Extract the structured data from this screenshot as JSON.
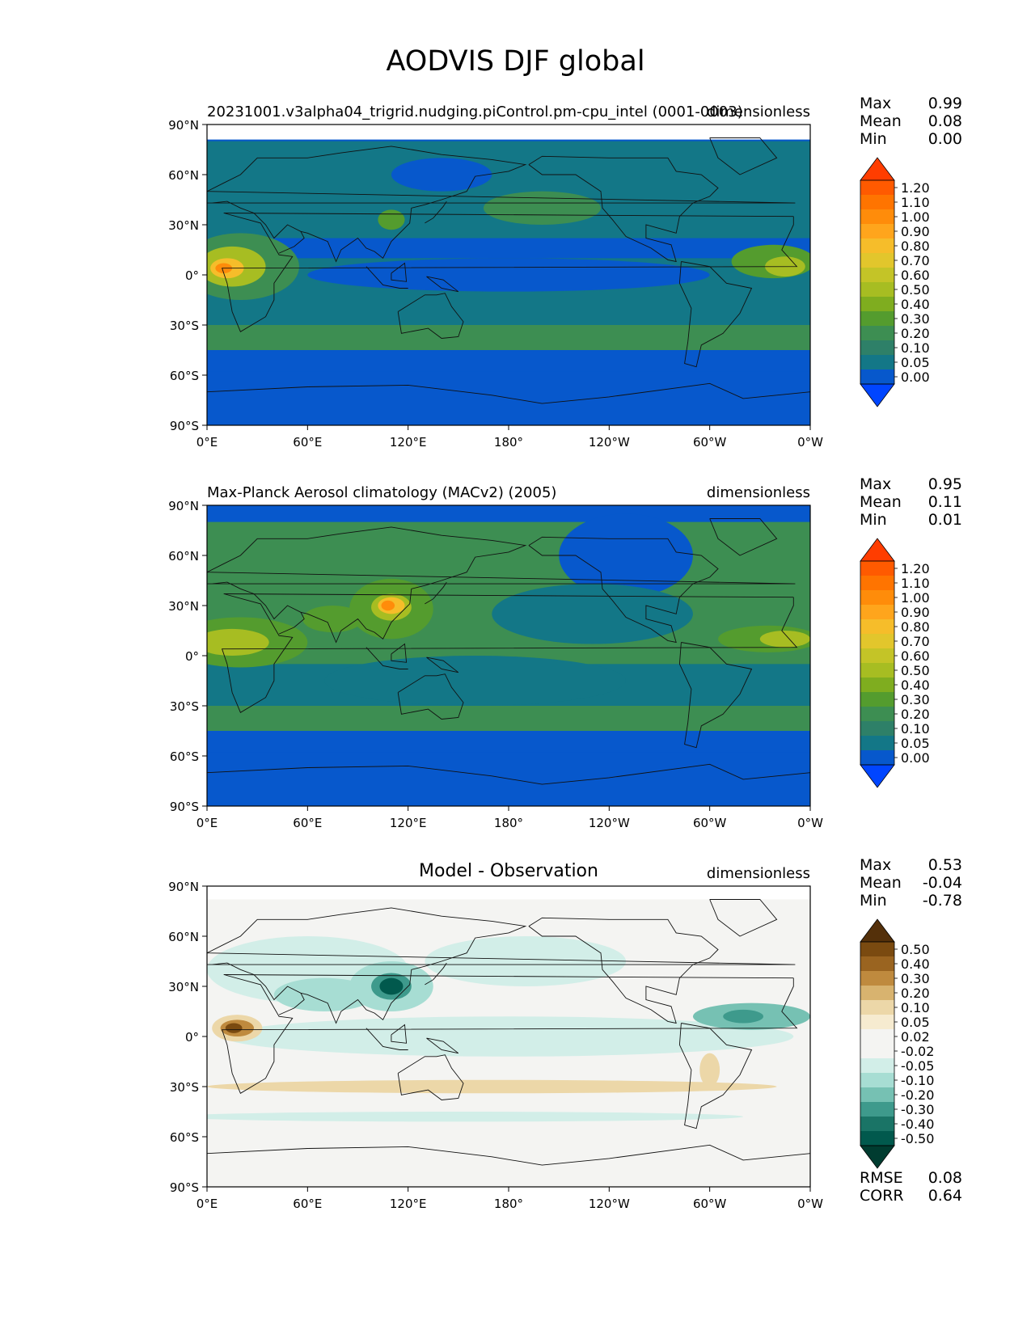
{
  "suptitle": "AODVIS DJF global",
  "panels": [
    {
      "left_title": "20231001.v3alpha04_trigrid.nudging.piControl.pm-cpu_intel (0001-0003)",
      "right_title": "dimensionless",
      "center_title": "",
      "stats": [
        {
          "label": "Max",
          "value": "0.99"
        },
        {
          "label": "Mean",
          "value": "0.08"
        },
        {
          "label": "Min",
          "value": "0.00"
        }
      ],
      "colorbar": {
        "labels": [
          "1.20",
          "1.10",
          "1.00",
          "0.90",
          "0.80",
          "0.70",
          "0.60",
          "0.50",
          "0.40",
          "0.30",
          "0.20",
          "0.10",
          "0.05",
          "0.00"
        ],
        "colors": [
          "#ff3d00",
          "#ff5a00",
          "#ff7400",
          "#ff8c0a",
          "#ffa51c",
          "#f6bd2a",
          "#e2c62c",
          "#c4c427",
          "#a7bd22",
          "#7fad1f",
          "#549c2e",
          "#3d8e52",
          "#2e8068",
          "#137787",
          "#0758cc",
          "#0045ff"
        ]
      },
      "map_colors": {
        "base": "#0758cc",
        "level1": "#137787",
        "level2": "#3d8e52",
        "level3": "#549c2e",
        "level4": "#a7bd22",
        "level5": "#f6bd2a",
        "level6": "#ff8c0a"
      }
    },
    {
      "left_title": "Max-Planck Aerosol climatology (MACv2) (2005)",
      "right_title": "dimensionless",
      "center_title": "",
      "stats": [
        {
          "label": "Max",
          "value": "0.95"
        },
        {
          "label": "Mean",
          "value": "0.11"
        },
        {
          "label": "Min",
          "value": "0.01"
        }
      ],
      "colorbar": {
        "labels": [
          "1.20",
          "1.10",
          "1.00",
          "0.90",
          "0.80",
          "0.70",
          "0.60",
          "0.50",
          "0.40",
          "0.30",
          "0.20",
          "0.10",
          "0.05",
          "0.00"
        ],
        "colors": [
          "#ff3d00",
          "#ff5a00",
          "#ff7400",
          "#ff8c0a",
          "#ffa51c",
          "#f6bd2a",
          "#e2c62c",
          "#c4c427",
          "#a7bd22",
          "#7fad1f",
          "#549c2e",
          "#3d8e52",
          "#2e8068",
          "#137787",
          "#0758cc",
          "#0045ff"
        ]
      },
      "map_colors": {
        "base": "#0758cc",
        "level1": "#137787",
        "level2": "#3d8e52",
        "level3": "#549c2e",
        "level4": "#a7bd22",
        "level5": "#f6bd2a",
        "level6": "#ff8c0a"
      }
    },
    {
      "left_title": "",
      "right_title": "dimensionless",
      "center_title": "Model - Observation",
      "stats": [
        {
          "label": "Max",
          "value": "0.53"
        },
        {
          "label": "Mean",
          "value": "-0.04"
        },
        {
          "label": "Min",
          "value": "-0.78"
        }
      ],
      "colorbar": {
        "labels": [
          "0.50",
          "0.40",
          "0.30",
          "0.20",
          "0.10",
          "0.05",
          "0.02",
          "-0.02",
          "-0.05",
          "-0.10",
          "-0.20",
          "-0.30",
          "-0.40",
          "-0.50"
        ],
        "colors": [
          "#54300a",
          "#7a4a10",
          "#9a6420",
          "#bf8a3e",
          "#d8b36f",
          "#ecd7a8",
          "#f6ebd0",
          "#f4f4f2",
          "#f4f4f2",
          "#d2eee8",
          "#a7ddd3",
          "#76c1b3",
          "#3e9a8c",
          "#1a7466",
          "#01594d",
          "#003c30"
        ]
      },
      "map_colors": {
        "base": "#f4f4f2",
        "level1": "#d2eee8",
        "level2": "#a7ddd3",
        "level3": "#76c1b3",
        "level4": "#3e9a8c",
        "level5": "#01594d",
        "brown1": "#ecd7a8",
        "brown2": "#bf8a3e",
        "brown3": "#7a4a10"
      }
    }
  ],
  "rmse": {
    "label": "RMSE",
    "value": "0.08"
  },
  "corr": {
    "label": "CORR",
    "value": "0.64"
  },
  "axes": {
    "xticks": [
      "0°E",
      "60°E",
      "120°E",
      "180°",
      "120°W",
      "60°W",
      "0°W"
    ],
    "yticks": [
      "90°N",
      "60°N",
      "30°N",
      "0°",
      "30°S",
      "60°S",
      "90°S"
    ]
  },
  "chart_data": [
    {
      "type": "heatmap",
      "title": "20231001.v3alpha04_trigrid.nudging.piControl.pm-cpu_intel (0001-0003)",
      "units": "dimensionless",
      "max": 0.99,
      "mean": 0.08,
      "min": 0.0,
      "xlim": [
        0,
        360
      ],
      "ylim": [
        -90,
        90
      ],
      "levels": [
        0.0,
        0.05,
        0.1,
        0.2,
        0.3,
        0.4,
        0.5,
        0.6,
        0.7,
        0.8,
        0.9,
        1.0,
        1.1,
        1.2
      ]
    },
    {
      "type": "heatmap",
      "title": "Max-Planck Aerosol climatology (MACv2) (2005)",
      "units": "dimensionless",
      "max": 0.95,
      "mean": 0.11,
      "min": 0.01,
      "xlim": [
        0,
        360
      ],
      "ylim": [
        -90,
        90
      ],
      "levels": [
        0.0,
        0.05,
        0.1,
        0.2,
        0.3,
        0.4,
        0.5,
        0.6,
        0.7,
        0.8,
        0.9,
        1.0,
        1.1,
        1.2
      ]
    },
    {
      "type": "heatmap",
      "title": "Model - Observation",
      "units": "dimensionless",
      "max": 0.53,
      "mean": -0.04,
      "min": -0.78,
      "rmse": 0.08,
      "corr": 0.64,
      "xlim": [
        0,
        360
      ],
      "ylim": [
        -90,
        90
      ],
      "levels": [
        -0.5,
        -0.4,
        -0.3,
        -0.2,
        -0.1,
        -0.05,
        -0.02,
        0.02,
        0.05,
        0.1,
        0.2,
        0.3,
        0.4,
        0.5
      ]
    }
  ]
}
